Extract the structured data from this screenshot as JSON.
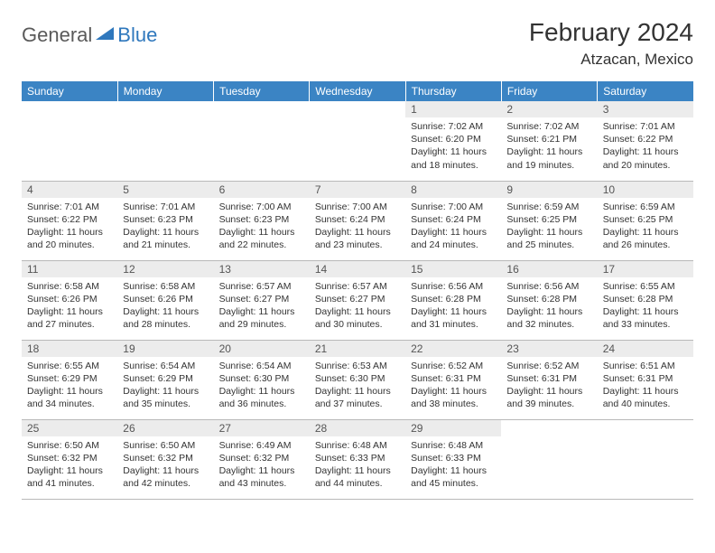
{
  "logo": {
    "general": "General",
    "blue": "Blue"
  },
  "title": "February 2024",
  "location": "Atzacan, Mexico",
  "colors": {
    "header_bg": "#3b84c4",
    "header_text": "#ffffff",
    "daynum_bg": "#ececec",
    "border": "#b9b9b9",
    "logo_gray": "#5a5a5a",
    "logo_blue": "#2f78bd"
  },
  "weekdays": [
    "Sunday",
    "Monday",
    "Tuesday",
    "Wednesday",
    "Thursday",
    "Friday",
    "Saturday"
  ],
  "weeks": [
    [
      null,
      null,
      null,
      null,
      {
        "n": "1",
        "sr": "Sunrise: 7:02 AM",
        "ss": "Sunset: 6:20 PM",
        "d1": "Daylight: 11 hours",
        "d2": "and 18 minutes."
      },
      {
        "n": "2",
        "sr": "Sunrise: 7:02 AM",
        "ss": "Sunset: 6:21 PM",
        "d1": "Daylight: 11 hours",
        "d2": "and 19 minutes."
      },
      {
        "n": "3",
        "sr": "Sunrise: 7:01 AM",
        "ss": "Sunset: 6:22 PM",
        "d1": "Daylight: 11 hours",
        "d2": "and 20 minutes."
      }
    ],
    [
      {
        "n": "4",
        "sr": "Sunrise: 7:01 AM",
        "ss": "Sunset: 6:22 PM",
        "d1": "Daylight: 11 hours",
        "d2": "and 20 minutes."
      },
      {
        "n": "5",
        "sr": "Sunrise: 7:01 AM",
        "ss": "Sunset: 6:23 PM",
        "d1": "Daylight: 11 hours",
        "d2": "and 21 minutes."
      },
      {
        "n": "6",
        "sr": "Sunrise: 7:00 AM",
        "ss": "Sunset: 6:23 PM",
        "d1": "Daylight: 11 hours",
        "d2": "and 22 minutes."
      },
      {
        "n": "7",
        "sr": "Sunrise: 7:00 AM",
        "ss": "Sunset: 6:24 PM",
        "d1": "Daylight: 11 hours",
        "d2": "and 23 minutes."
      },
      {
        "n": "8",
        "sr": "Sunrise: 7:00 AM",
        "ss": "Sunset: 6:24 PM",
        "d1": "Daylight: 11 hours",
        "d2": "and 24 minutes."
      },
      {
        "n": "9",
        "sr": "Sunrise: 6:59 AM",
        "ss": "Sunset: 6:25 PM",
        "d1": "Daylight: 11 hours",
        "d2": "and 25 minutes."
      },
      {
        "n": "10",
        "sr": "Sunrise: 6:59 AM",
        "ss": "Sunset: 6:25 PM",
        "d1": "Daylight: 11 hours",
        "d2": "and 26 minutes."
      }
    ],
    [
      {
        "n": "11",
        "sr": "Sunrise: 6:58 AM",
        "ss": "Sunset: 6:26 PM",
        "d1": "Daylight: 11 hours",
        "d2": "and 27 minutes."
      },
      {
        "n": "12",
        "sr": "Sunrise: 6:58 AM",
        "ss": "Sunset: 6:26 PM",
        "d1": "Daylight: 11 hours",
        "d2": "and 28 minutes."
      },
      {
        "n": "13",
        "sr": "Sunrise: 6:57 AM",
        "ss": "Sunset: 6:27 PM",
        "d1": "Daylight: 11 hours",
        "d2": "and 29 minutes."
      },
      {
        "n": "14",
        "sr": "Sunrise: 6:57 AM",
        "ss": "Sunset: 6:27 PM",
        "d1": "Daylight: 11 hours",
        "d2": "and 30 minutes."
      },
      {
        "n": "15",
        "sr": "Sunrise: 6:56 AM",
        "ss": "Sunset: 6:28 PM",
        "d1": "Daylight: 11 hours",
        "d2": "and 31 minutes."
      },
      {
        "n": "16",
        "sr": "Sunrise: 6:56 AM",
        "ss": "Sunset: 6:28 PM",
        "d1": "Daylight: 11 hours",
        "d2": "and 32 minutes."
      },
      {
        "n": "17",
        "sr": "Sunrise: 6:55 AM",
        "ss": "Sunset: 6:28 PM",
        "d1": "Daylight: 11 hours",
        "d2": "and 33 minutes."
      }
    ],
    [
      {
        "n": "18",
        "sr": "Sunrise: 6:55 AM",
        "ss": "Sunset: 6:29 PM",
        "d1": "Daylight: 11 hours",
        "d2": "and 34 minutes."
      },
      {
        "n": "19",
        "sr": "Sunrise: 6:54 AM",
        "ss": "Sunset: 6:29 PM",
        "d1": "Daylight: 11 hours",
        "d2": "and 35 minutes."
      },
      {
        "n": "20",
        "sr": "Sunrise: 6:54 AM",
        "ss": "Sunset: 6:30 PM",
        "d1": "Daylight: 11 hours",
        "d2": "and 36 minutes."
      },
      {
        "n": "21",
        "sr": "Sunrise: 6:53 AM",
        "ss": "Sunset: 6:30 PM",
        "d1": "Daylight: 11 hours",
        "d2": "and 37 minutes."
      },
      {
        "n": "22",
        "sr": "Sunrise: 6:52 AM",
        "ss": "Sunset: 6:31 PM",
        "d1": "Daylight: 11 hours",
        "d2": "and 38 minutes."
      },
      {
        "n": "23",
        "sr": "Sunrise: 6:52 AM",
        "ss": "Sunset: 6:31 PM",
        "d1": "Daylight: 11 hours",
        "d2": "and 39 minutes."
      },
      {
        "n": "24",
        "sr": "Sunrise: 6:51 AM",
        "ss": "Sunset: 6:31 PM",
        "d1": "Daylight: 11 hours",
        "d2": "and 40 minutes."
      }
    ],
    [
      {
        "n": "25",
        "sr": "Sunrise: 6:50 AM",
        "ss": "Sunset: 6:32 PM",
        "d1": "Daylight: 11 hours",
        "d2": "and 41 minutes."
      },
      {
        "n": "26",
        "sr": "Sunrise: 6:50 AM",
        "ss": "Sunset: 6:32 PM",
        "d1": "Daylight: 11 hours",
        "d2": "and 42 minutes."
      },
      {
        "n": "27",
        "sr": "Sunrise: 6:49 AM",
        "ss": "Sunset: 6:32 PM",
        "d1": "Daylight: 11 hours",
        "d2": "and 43 minutes."
      },
      {
        "n": "28",
        "sr": "Sunrise: 6:48 AM",
        "ss": "Sunset: 6:33 PM",
        "d1": "Daylight: 11 hours",
        "d2": "and 44 minutes."
      },
      {
        "n": "29",
        "sr": "Sunrise: 6:48 AM",
        "ss": "Sunset: 6:33 PM",
        "d1": "Daylight: 11 hours",
        "d2": "and 45 minutes."
      },
      null,
      null
    ]
  ]
}
